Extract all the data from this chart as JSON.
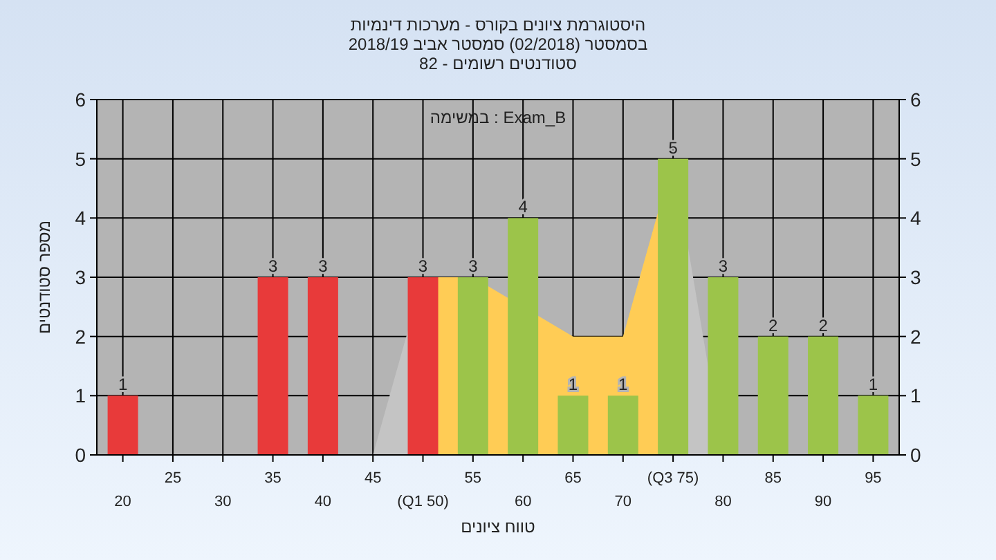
{
  "chart_data": {
    "type": "bar",
    "title": "היסטוגרמת ציונים בקורס - מערכות דינמיות",
    "subtitle": "בסמסטר  (02/2018)  סמסטר אביב 2018/19\nסטודנטים רשומים - 82",
    "xlabel": "טווח ציונים",
    "ylabel": "מספר סטודנטים",
    "annotations": [
      "במשימה : Exam_B"
    ],
    "categories": [
      "20",
      "25",
      "30",
      "35",
      "40",
      "45",
      "(Q1 50)",
      "55",
      "60",
      "65",
      "70",
      "(Q3 75)",
      "80",
      "85",
      "90",
      "95"
    ],
    "series": [
      {
        "type": "area",
        "color": "#c4c4c4",
        "values": [
          null,
          null,
          null,
          null,
          null,
          0,
          3,
          null,
          null,
          null,
          null,
          null,
          null,
          null,
          null,
          null
        ]
      },
      {
        "type": "area",
        "color": "#c4c4c4",
        "values": [
          null,
          null,
          null,
          null,
          null,
          null,
          null,
          null,
          null,
          null,
          null,
          5,
          0,
          null,
          null,
          null
        ]
      },
      {
        "type": "area",
        "color": "#ffcc55",
        "values": [
          null,
          null,
          null,
          null,
          null,
          null,
          3,
          3,
          null,
          2,
          2,
          5,
          null,
          null,
          null,
          null
        ]
      },
      {
        "colors": [
          "#e83a3a",
          "#e83a3a",
          "#e83a3a",
          "#e83a3a",
          "#e83a3a",
          "#e83a3a",
          "#e83a3a",
          "#9cc44a",
          "#9cc44a",
          "#9cc44a",
          "#9cc44a",
          "#9cc44a",
          "#9cc44a",
          "#9cc44a",
          "#9cc44a",
          "#9cc44a"
        ],
        "values": [
          1,
          0,
          0,
          3,
          3,
          0,
          3,
          3,
          4,
          1,
          1,
          5,
          3,
          2,
          2,
          1
        ],
        "value_labels": [
          "1",
          null,
          null,
          "3",
          "3",
          null,
          "3",
          "3",
          "4",
          "1",
          "1",
          "5",
          "3",
          "2",
          "2",
          "1"
        ]
      }
    ],
    "ylim": [
      0,
      6
    ],
    "yticks": [
      0,
      1,
      2,
      3,
      4,
      5,
      6
    ],
    "y2lim": [
      0,
      6
    ],
    "y2ticks": [
      0,
      1,
      2,
      3,
      4,
      5,
      6
    ],
    "grid": true
  }
}
